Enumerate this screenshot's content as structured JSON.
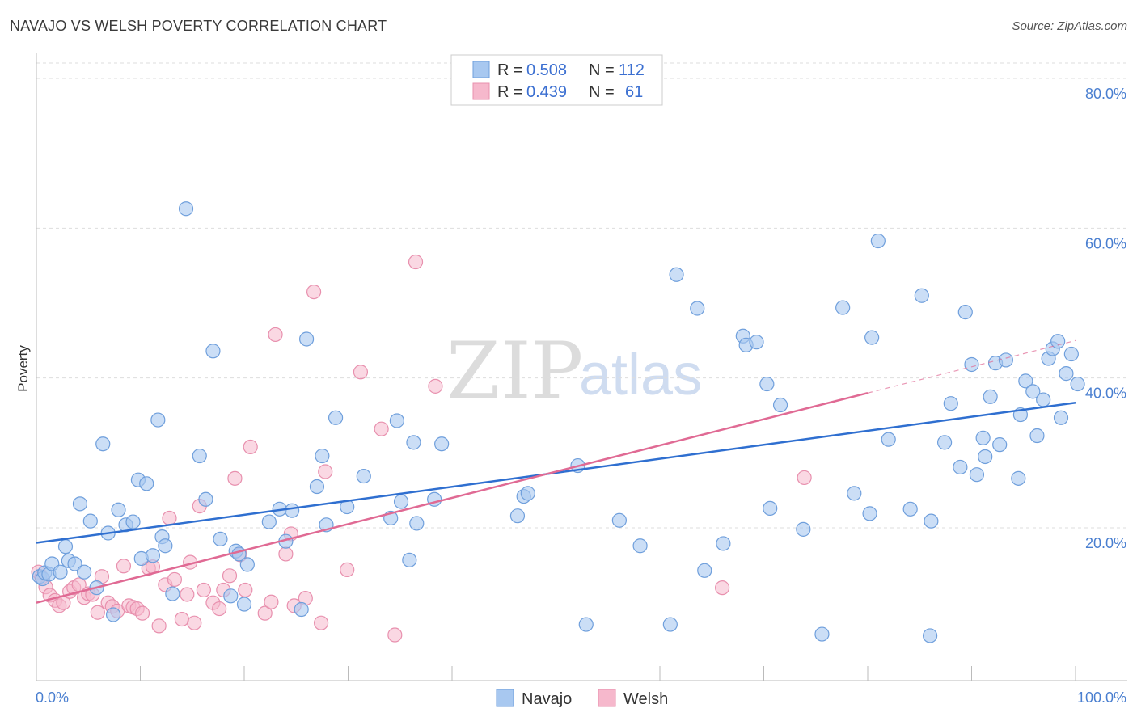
{
  "title": "NAVAJO VS WELSH POVERTY CORRELATION CHART",
  "source": "Source: ZipAtlas.com",
  "watermark": {
    "zip": "ZIP",
    "atlas": "atlas"
  },
  "legend_top": [
    {
      "r_label": "R =",
      "r_value": "0.508",
      "n_label": "N =",
      "n_value": "112"
    },
    {
      "r_label": "R =",
      "r_value": "0.439",
      "n_label": "N =",
      "n_value": "61"
    }
  ],
  "colors": {
    "navajo_fill": "#a8c8f0",
    "navajo_stroke": "#6f9fdc",
    "navajo_line": "#2f6fd0",
    "welsh_fill": "#f6b8cc",
    "welsh_stroke": "#e890ae",
    "welsh_line": "#e06a94",
    "grid": "#dddddd",
    "tick_text": "#4a7fd0"
  },
  "chart_data": {
    "type": "scatter",
    "title": "NAVAJO VS WELSH POVERTY CORRELATION CHART",
    "xlabel": "",
    "ylabel": "Poverty",
    "xlim": [
      0,
      100
    ],
    "ylim": [
      0,
      85
    ],
    "x_tick_labels": [
      "0.0%",
      "100.0%"
    ],
    "y_ticks": [
      20,
      40,
      60,
      80
    ],
    "y_tick_labels": [
      "20.0%",
      "40.0%",
      "60.0%",
      "80.0%"
    ],
    "grid": true,
    "legend_position": "bottom",
    "series": [
      {
        "name": "Navajo",
        "r": 0.508,
        "n": 112,
        "trend": {
          "x0": 0,
          "y0": 18.0,
          "x1": 100,
          "y1": 36.7
        },
        "points": [
          [
            0.3,
            13.5
          ],
          [
            0.6,
            13.2
          ],
          [
            0.8,
            14.0
          ],
          [
            1.2,
            13.8
          ],
          [
            1.5,
            15.2
          ],
          [
            2.3,
            14.1
          ],
          [
            2.8,
            17.5
          ],
          [
            3.1,
            15.6
          ],
          [
            3.7,
            15.2
          ],
          [
            4.2,
            23.2
          ],
          [
            4.6,
            14.1
          ],
          [
            5.2,
            20.9
          ],
          [
            5.8,
            12.0
          ],
          [
            6.4,
            31.2
          ],
          [
            6.9,
            19.3
          ],
          [
            7.4,
            8.4
          ],
          [
            7.9,
            22.4
          ],
          [
            8.6,
            20.4
          ],
          [
            9.3,
            20.8
          ],
          [
            9.8,
            26.4
          ],
          [
            10.1,
            15.9
          ],
          [
            10.6,
            25.9
          ],
          [
            11.2,
            16.3
          ],
          [
            11.7,
            34.4
          ],
          [
            12.1,
            18.8
          ],
          [
            12.4,
            17.6
          ],
          [
            13.1,
            11.2
          ],
          [
            14.4,
            62.6
          ],
          [
            15.7,
            29.6
          ],
          [
            16.3,
            23.8
          ],
          [
            17.0,
            43.6
          ],
          [
            17.7,
            18.5
          ],
          [
            18.7,
            10.9
          ],
          [
            19.2,
            16.9
          ],
          [
            19.5,
            16.5
          ],
          [
            20.0,
            9.8
          ],
          [
            20.3,
            15.1
          ],
          [
            22.4,
            20.8
          ],
          [
            23.4,
            22.5
          ],
          [
            24.6,
            22.3
          ],
          [
            24.0,
            18.2
          ],
          [
            25.5,
            9.1
          ],
          [
            26.0,
            45.2
          ],
          [
            27.0,
            25.5
          ],
          [
            27.5,
            29.6
          ],
          [
            27.9,
            20.4
          ],
          [
            28.8,
            34.7
          ],
          [
            29.9,
            22.8
          ],
          [
            31.5,
            26.9
          ],
          [
            34.1,
            21.3
          ],
          [
            34.7,
            34.3
          ],
          [
            35.1,
            23.5
          ],
          [
            35.9,
            15.7
          ],
          [
            36.3,
            31.4
          ],
          [
            36.6,
            20.6
          ],
          [
            38.3,
            23.8
          ],
          [
            39.0,
            31.2
          ],
          [
            46.3,
            21.6
          ],
          [
            46.9,
            24.2
          ],
          [
            47.3,
            24.6
          ],
          [
            52.1,
            28.3
          ],
          [
            52.9,
            7.1
          ],
          [
            56.1,
            21.0
          ],
          [
            58.1,
            17.6
          ],
          [
            61.0,
            7.1
          ],
          [
            61.6,
            53.8
          ],
          [
            63.6,
            49.3
          ],
          [
            64.3,
            14.3
          ],
          [
            66.1,
            17.9
          ],
          [
            68.0,
            45.6
          ],
          [
            68.3,
            44.4
          ],
          [
            69.3,
            44.8
          ],
          [
            70.3,
            39.2
          ],
          [
            70.6,
            22.6
          ],
          [
            71.6,
            36.4
          ],
          [
            73.8,
            19.8
          ],
          [
            75.6,
            5.8
          ],
          [
            77.6,
            49.4
          ],
          [
            78.7,
            24.6
          ],
          [
            80.2,
            21.9
          ],
          [
            80.4,
            45.4
          ],
          [
            81.0,
            58.3
          ],
          [
            82.0,
            31.8
          ],
          [
            84.1,
            22.5
          ],
          [
            85.2,
            51.0
          ],
          [
            86.1,
            20.9
          ],
          [
            86.0,
            5.6
          ],
          [
            87.4,
            31.4
          ],
          [
            88.0,
            36.6
          ],
          [
            88.9,
            28.1
          ],
          [
            89.4,
            48.8
          ],
          [
            90.0,
            41.8
          ],
          [
            90.5,
            27.1
          ],
          [
            91.1,
            32.0
          ],
          [
            91.3,
            29.5
          ],
          [
            91.8,
            37.5
          ],
          [
            92.3,
            42.0
          ],
          [
            92.7,
            31.1
          ],
          [
            93.3,
            42.4
          ],
          [
            94.5,
            26.6
          ],
          [
            94.7,
            35.1
          ],
          [
            95.2,
            39.6
          ],
          [
            95.9,
            38.2
          ],
          [
            96.3,
            32.3
          ],
          [
            96.9,
            37.1
          ],
          [
            97.4,
            42.6
          ],
          [
            97.8,
            43.9
          ],
          [
            98.3,
            44.9
          ],
          [
            98.6,
            34.7
          ],
          [
            99.1,
            40.6
          ],
          [
            99.6,
            43.2
          ],
          [
            100.2,
            39.2
          ]
        ]
      },
      {
        "name": "Welsh",
        "r": 0.439,
        "n": 61,
        "trend": {
          "x0": 0,
          "y0": 10.0,
          "x1": 80,
          "y1": 38.0,
          "dashed_to_x": 100,
          "dashed_to_y": 45.0
        },
        "points": [
          [
            0.2,
            14.1
          ],
          [
            0.5,
            13.4
          ],
          [
            0.9,
            12.1
          ],
          [
            1.3,
            11.0
          ],
          [
            1.8,
            10.3
          ],
          [
            2.2,
            9.6
          ],
          [
            2.6,
            10.0
          ],
          [
            3.2,
            11.5
          ],
          [
            3.6,
            12.0
          ],
          [
            4.1,
            12.4
          ],
          [
            4.6,
            10.7
          ],
          [
            5.0,
            11.2
          ],
          [
            5.4,
            11.1
          ],
          [
            5.9,
            8.7
          ],
          [
            6.3,
            13.5
          ],
          [
            6.9,
            10.0
          ],
          [
            7.3,
            9.5
          ],
          [
            7.8,
            8.9
          ],
          [
            8.4,
            14.9
          ],
          [
            8.9,
            9.6
          ],
          [
            9.3,
            9.4
          ],
          [
            9.7,
            9.2
          ],
          [
            10.2,
            8.6
          ],
          [
            10.8,
            14.6
          ],
          [
            11.2,
            14.8
          ],
          [
            11.8,
            6.9
          ],
          [
            12.4,
            12.4
          ],
          [
            12.8,
            21.3
          ],
          [
            13.3,
            13.1
          ],
          [
            14.0,
            7.8
          ],
          [
            14.5,
            11.1
          ],
          [
            14.8,
            15.4
          ],
          [
            15.2,
            7.3
          ],
          [
            15.7,
            22.9
          ],
          [
            16.1,
            11.7
          ],
          [
            17.0,
            10.0
          ],
          [
            17.6,
            9.2
          ],
          [
            18.0,
            11.7
          ],
          [
            18.6,
            13.6
          ],
          [
            19.1,
            26.6
          ],
          [
            19.6,
            16.4
          ],
          [
            20.1,
            11.7
          ],
          [
            20.6,
            30.8
          ],
          [
            22.0,
            8.6
          ],
          [
            22.6,
            10.1
          ],
          [
            23.0,
            45.8
          ],
          [
            24.0,
            16.5
          ],
          [
            24.5,
            19.2
          ],
          [
            24.8,
            9.6
          ],
          [
            25.9,
            10.6
          ],
          [
            26.7,
            51.5
          ],
          [
            27.4,
            7.3
          ],
          [
            27.8,
            27.5
          ],
          [
            29.9,
            14.4
          ],
          [
            31.2,
            40.8
          ],
          [
            33.2,
            33.2
          ],
          [
            34.5,
            5.7
          ],
          [
            36.5,
            55.5
          ],
          [
            38.4,
            38.9
          ],
          [
            66.0,
            12.0
          ],
          [
            73.9,
            26.7
          ]
        ]
      }
    ]
  },
  "legend_bottom": [
    {
      "label": "Navajo"
    },
    {
      "label": "Welsh"
    }
  ]
}
